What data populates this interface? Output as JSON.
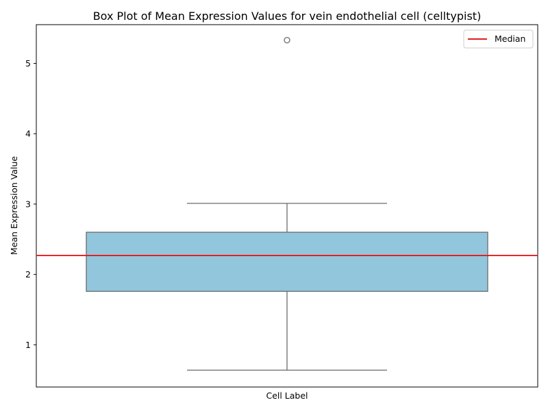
{
  "chart_data": {
    "type": "box",
    "title": "Box Plot of Mean Expression Values for vein endothelial cell (celltypist)",
    "xlabel": "Cell Label",
    "ylabel": "Mean Expression Value",
    "ylim": [
      0.4,
      5.55
    ],
    "yticks": [
      1,
      2,
      3,
      4,
      5
    ],
    "grid": false,
    "box": {
      "whisker_low": 0.64,
      "q1": 1.76,
      "median": 2.27,
      "q3": 2.6,
      "whisker_high": 3.01,
      "outliers": [
        5.33
      ]
    },
    "median_line": {
      "label": "Median",
      "value": 2.27
    },
    "legend": {
      "placement": "top-right",
      "entries": [
        "Median"
      ]
    },
    "colors": {
      "box_fill": "#92c6dc",
      "box_edge": "#6b6b6b",
      "median_line": "#e31a1c"
    }
  }
}
